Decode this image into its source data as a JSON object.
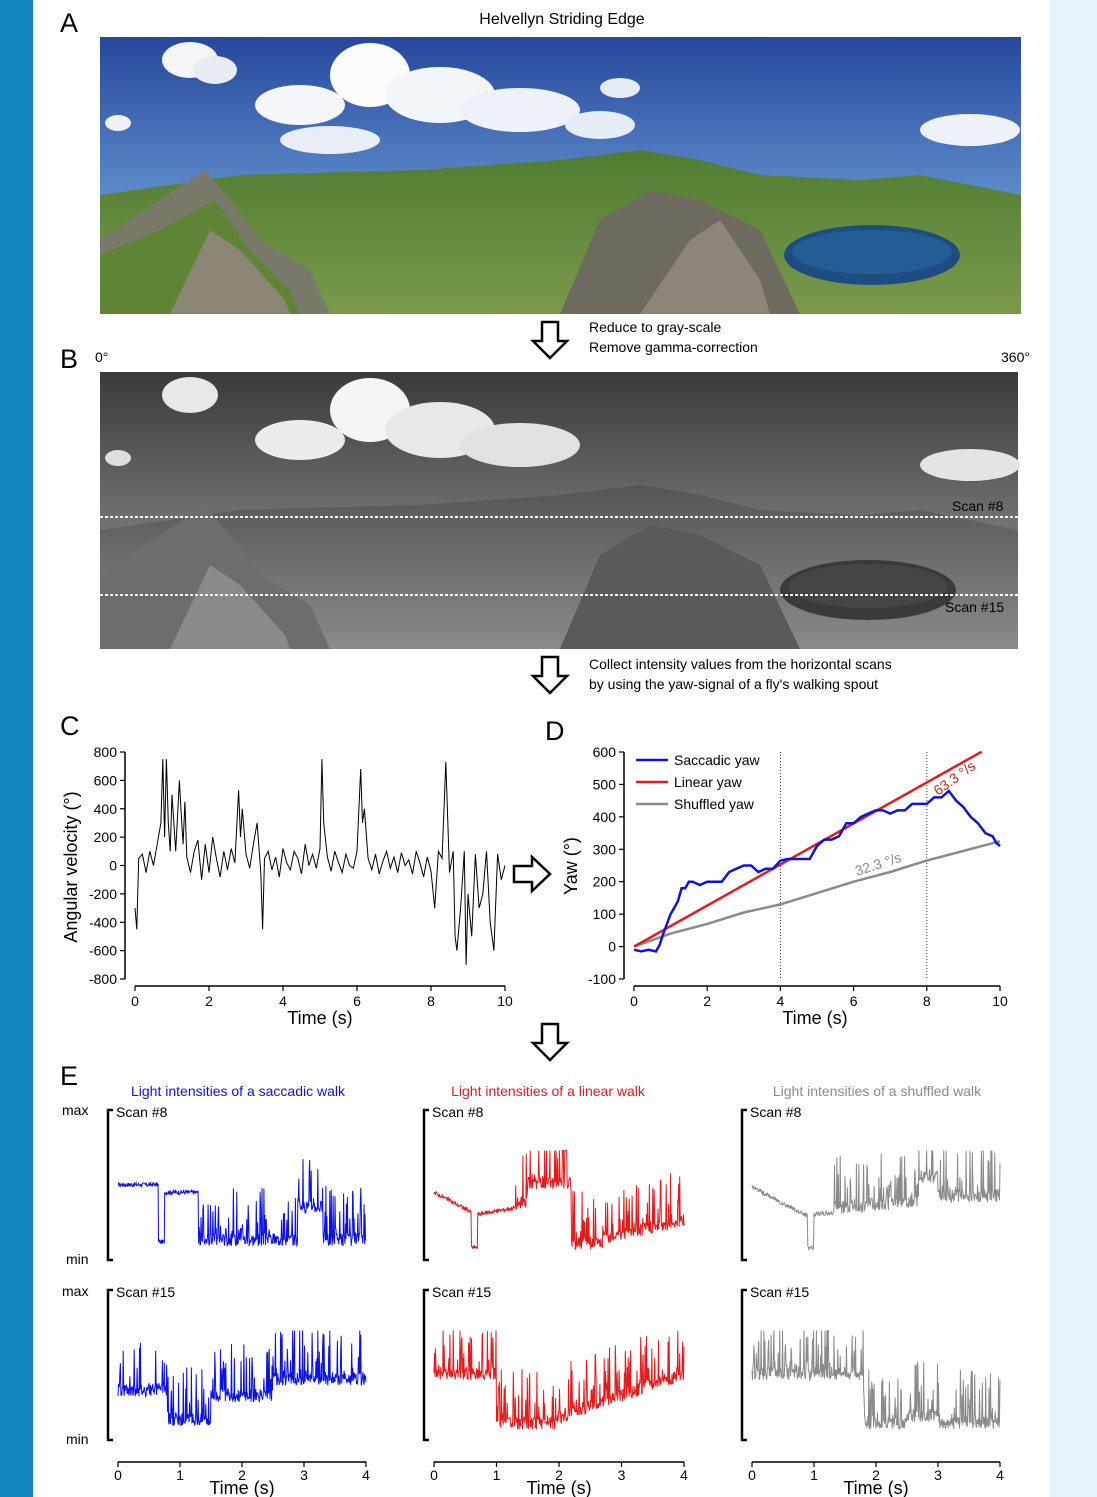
{
  "colors": {
    "saccadic": "#0a12e6",
    "linear": "#e51b1b",
    "shuffled": "#8a8a8a",
    "sky_top": "#27499e",
    "sky_low": "#7fa8d6",
    "grass": "#5d8a36",
    "lake": "#1d4d80",
    "left_bar": "#1585bd",
    "right_bar": "#e6f3fa"
  },
  "panel_a": {
    "letter": "A",
    "title": "Helvellyn Striding Edge"
  },
  "step1": {
    "line1": "Reduce to gray-scale",
    "line2": "Remove gamma-correction"
  },
  "panel_b": {
    "letter": "B",
    "deg_left": "0°",
    "deg_right": "360°",
    "scan8": "Scan #8",
    "scan15": "Scan #15"
  },
  "step2": {
    "line1": "Collect intensity values from the horizontal scans",
    "line2": "by using the yaw-signal of a fly's walking spout"
  },
  "panel_c": {
    "letter": "C",
    "ylabel": "Angular velocity (°)",
    "xlabel": "Time (s)",
    "yticks": [
      "800",
      "600",
      "400",
      "200",
      "0",
      "-200",
      "-400",
      "-600",
      "-800"
    ],
    "xticks": [
      "0",
      "2",
      "4",
      "6",
      "8",
      "10"
    ]
  },
  "panel_d": {
    "letter": "D",
    "ylabel": "Yaw (°)",
    "xlabel": "Time (s)",
    "yticks": [
      "600",
      "500",
      "400",
      "300",
      "200",
      "100",
      "0",
      "-100"
    ],
    "xticks": [
      "0",
      "2",
      "4",
      "6",
      "8",
      "10"
    ],
    "legend": [
      "Saccadic yaw",
      "Linear yaw",
      "Shuffled yaw"
    ],
    "linear_rate": "63.3 °/s",
    "shuffled_rate": "32.3 °/s"
  },
  "panel_e": {
    "letter": "E",
    "headers": [
      "Light intensities of a saccadic walk",
      "Light intensities of a linear walk",
      "Light intensities of a shuffled walk"
    ],
    "scan8": "Scan #8",
    "scan15": "Scan #15",
    "max": "max",
    "min": "min",
    "xlabel": "Time (s)",
    "xticks": [
      "0",
      "1",
      "2",
      "3",
      "4"
    ]
  },
  "chart_data": [
    {
      "type": "line",
      "panel": "C",
      "xlabel": "Time (s)",
      "ylabel": "Angular velocity (°)",
      "xlim": [
        0,
        10
      ],
      "ylim": [
        -800,
        800
      ],
      "x": [
        0,
        0.05,
        0.1,
        0.2,
        0.3,
        0.4,
        0.5,
        0.6,
        0.7,
        0.75,
        0.8,
        0.85,
        0.9,
        0.95,
        1.0,
        1.1,
        1.2,
        1.25,
        1.3,
        1.35,
        1.4,
        1.5,
        1.6,
        1.7,
        1.8,
        1.9,
        2.0,
        2.1,
        2.2,
        2.3,
        2.4,
        2.5,
        2.6,
        2.7,
        2.8,
        2.85,
        2.9,
        3.0,
        3.1,
        3.2,
        3.3,
        3.4,
        3.45,
        3.5,
        3.6,
        3.7,
        3.8,
        3.9,
        4.0,
        4.1,
        4.2,
        4.3,
        4.4,
        4.5,
        4.6,
        4.7,
        4.8,
        4.9,
        5.0,
        5.05,
        5.1,
        5.2,
        5.3,
        5.4,
        5.5,
        5.6,
        5.7,
        5.8,
        5.9,
        6.0,
        6.1,
        6.15,
        6.2,
        6.3,
        6.4,
        6.5,
        6.6,
        6.7,
        6.8,
        6.9,
        7.0,
        7.1,
        7.2,
        7.3,
        7.4,
        7.5,
        7.6,
        7.7,
        7.8,
        7.9,
        8.0,
        8.1,
        8.2,
        8.3,
        8.4,
        8.5,
        8.6,
        8.65,
        8.7,
        8.8,
        8.9,
        8.95,
        9.0,
        9.1,
        9.2,
        9.3,
        9.4,
        9.5,
        9.6,
        9.7,
        9.8,
        9.9,
        10.0
      ],
      "y": [
        -300,
        -450,
        50,
        80,
        -50,
        100,
        0,
        150,
        300,
        750,
        200,
        750,
        300,
        100,
        500,
        100,
        600,
        350,
        150,
        450,
        60,
        -50,
        100,
        180,
        -100,
        150,
        -50,
        200,
        50,
        -80,
        100,
        -30,
        120,
        20,
        530,
        200,
        400,
        80,
        -20,
        150,
        300,
        -50,
        -450,
        50,
        100,
        -30,
        60,
        -80,
        120,
        20,
        -30,
        100,
        50,
        -60,
        150,
        0,
        80,
        -20,
        120,
        750,
        300,
        60,
        -40,
        100,
        20,
        -50,
        80,
        0,
        -20,
        100,
        680,
        300,
        400,
        50,
        -30,
        80,
        -60,
        30,
        100,
        -20,
        60,
        -50,
        90,
        0,
        40,
        -60,
        100,
        20,
        -80,
        60,
        -40,
        -300,
        100,
        50,
        730,
        -50,
        100,
        -500,
        -600,
        -300,
        100,
        -700,
        -200,
        -500,
        80,
        -300,
        -200,
        100,
        -400,
        -600,
        80,
        -100,
        0
      ]
    },
    {
      "type": "line",
      "panel": "D",
      "xlabel": "Time (s)",
      "ylabel": "Yaw (°)",
      "xlim": [
        0,
        10
      ],
      "ylim": [
        -100,
        600
      ],
      "grid_vertical_dotted_at": [
        4,
        8
      ],
      "series": [
        {
          "name": "Saccadic yaw",
          "x": [
            0,
            0.2,
            0.4,
            0.6,
            0.7,
            0.8,
            0.9,
            1.0,
            1.1,
            1.2,
            1.3,
            1.4,
            1.5,
            1.6,
            1.8,
            2.0,
            2.2,
            2.4,
            2.6,
            2.8,
            3.0,
            3.2,
            3.4,
            3.6,
            3.8,
            4.0,
            4.2,
            4.4,
            4.6,
            4.8,
            5.0,
            5.2,
            5.4,
            5.6,
            5.8,
            6.0,
            6.2,
            6.4,
            6.6,
            6.8,
            7.0,
            7.2,
            7.4,
            7.6,
            7.8,
            8.0,
            8.2,
            8.4,
            8.6,
            8.8,
            9.0,
            9.2,
            9.4,
            9.6,
            9.8,
            9.9,
            10.0
          ],
          "y": [
            -10,
            -15,
            -10,
            -15,
            5,
            40,
            70,
            100,
            120,
            140,
            180,
            180,
            200,
            200,
            190,
            200,
            200,
            200,
            230,
            240,
            250,
            250,
            230,
            240,
            240,
            265,
            270,
            270,
            270,
            270,
            310,
            330,
            330,
            340,
            380,
            380,
            400,
            410,
            420,
            420,
            410,
            420,
            420,
            440,
            440,
            440,
            460,
            460,
            480,
            450,
            430,
            400,
            380,
            350,
            340,
            320,
            310
          ]
        },
        {
          "name": "Linear yaw",
          "x": [
            0,
            9.5
          ],
          "y": [
            0,
            601
          ]
        },
        {
          "name": "Shuffled yaw",
          "x": [
            0,
            1,
            2,
            3,
            4,
            5,
            6,
            7,
            8,
            9,
            10
          ],
          "y": [
            0,
            40,
            70,
            105,
            130,
            165,
            200,
            230,
            265,
            295,
            325
          ]
        }
      ],
      "annotations": [
        "63.3 °/s",
        "32.3 °/s"
      ]
    }
  ]
}
